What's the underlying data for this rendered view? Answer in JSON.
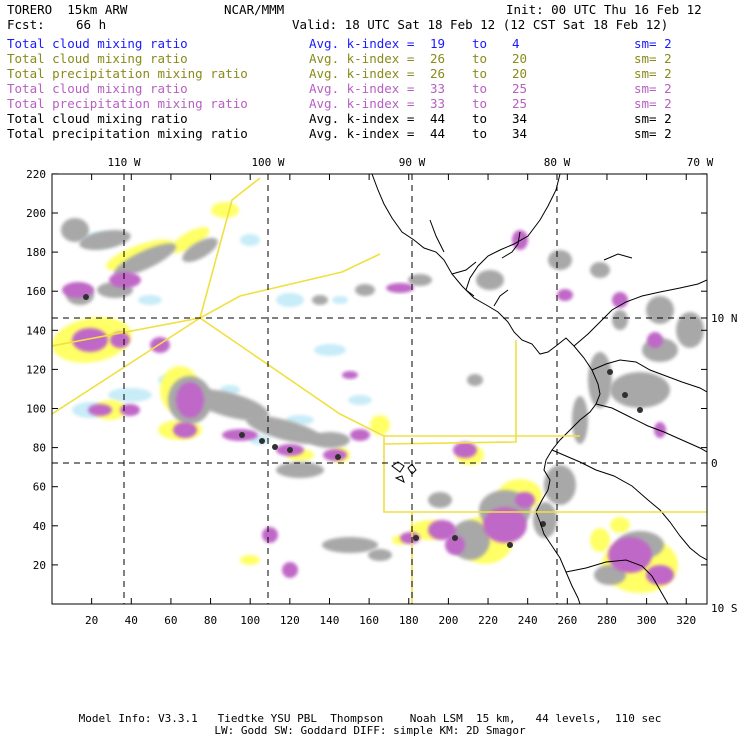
{
  "header": {
    "model": "TORERO  15km ARW",
    "org": "NCAR/MMM",
    "init": "Init: 00 UTC Thu 16 Feb 12",
    "fcst_label": "Fcst:",
    "fcst_value": "66 h",
    "valid": "Valid: 18 UTC Sat 18 Feb 12 (12 CST Sat 18 Feb 12)"
  },
  "legend": [
    {
      "field": "Total cloud mixing ratio",
      "kindex": "Avg. k-index =",
      "from": "19",
      "to_word": "to",
      "to": "4",
      "sm": "sm= 2",
      "color": "#1a1aff"
    },
    {
      "field": "Total cloud mixing ratio",
      "kindex": "Avg. k-index =",
      "from": "26",
      "to_word": "to",
      "to": "20",
      "sm": "sm= 2",
      "color": "#8a8a1a"
    },
    {
      "field": "Total precipitation mixing ratio",
      "kindex": "Avg. k-index =",
      "from": "26",
      "to_word": "to",
      "to": "20",
      "sm": "sm= 2",
      "color": "#8a8a1a"
    },
    {
      "field": "Total cloud mixing ratio",
      "kindex": "Avg. k-index =",
      "from": "33",
      "to_word": "to",
      "to": "25",
      "sm": "sm= 2",
      "color": "#b75fc2"
    },
    {
      "field": "Total precipitation mixing ratio",
      "kindex": "Avg. k-index =",
      "from": "33",
      "to_word": "to",
      "to": "25",
      "sm": "sm= 2",
      "color": "#b75fc2"
    },
    {
      "field": "Total cloud mixing ratio",
      "kindex": "Avg. k-index =",
      "from": "44",
      "to_word": "to",
      "to": "34",
      "sm": "sm= 2",
      "color": "#000000"
    },
    {
      "field": "Total precipitation mixing ratio",
      "kindex": "Avg. k-index =",
      "from": "44",
      "to_word": "to",
      "to": "34",
      "sm": "sm= 2",
      "color": "#000000"
    }
  ],
  "map": {
    "lon_labels": [
      "110 W",
      "100 W",
      "90 W",
      "80 W",
      "70 W"
    ],
    "lat_labels": [
      "10 N",
      "0",
      "10 S"
    ],
    "x_ticks": [
      "20",
      "40",
      "60",
      "80",
      "100",
      "120",
      "140",
      "160",
      "180",
      "200",
      "220",
      "240",
      "260",
      "280",
      "300",
      "320"
    ],
    "y_ticks": [
      "20",
      "40",
      "60",
      "80",
      "100",
      "120",
      "140",
      "160",
      "180",
      "200",
      "220"
    ],
    "colors": {
      "cloud_light": "#c8ecf8",
      "cloud_yellow": "#ffff66",
      "precip_purple": "#c068c8",
      "cloud_gray": "#a8a8a8",
      "dark_core": "#303030",
      "domain_line": "#f0e040",
      "coast": "#000000"
    }
  },
  "footer": {
    "line1": "Model Info: V3.3.1   Tiedtke YSU PBL  Thompson    Noah LSM  15 km,   44 levels,  110 sec",
    "line2": "LW: Godd SW: Goddard DIFF: simple KM: 2D Smagor"
  }
}
